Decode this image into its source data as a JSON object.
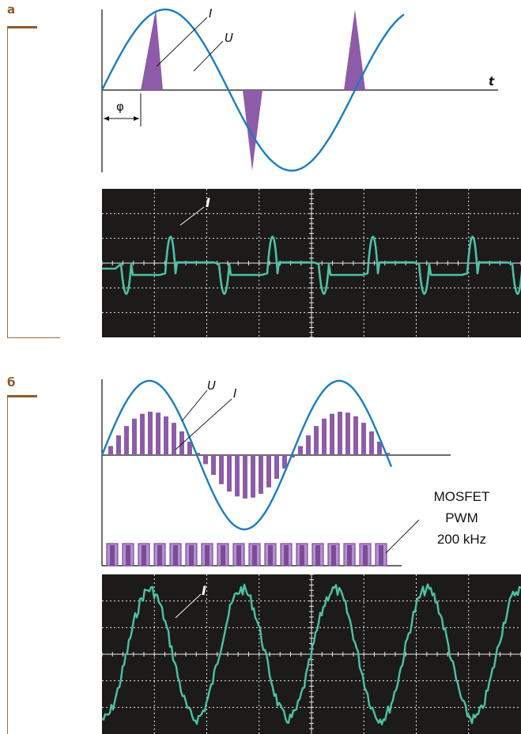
{
  "panel_a": {
    "letter": "а",
    "current_label": "I",
    "voltage_label": "U",
    "time_label": "t",
    "phase_label": "φ",
    "scope_current_label": "I"
  },
  "panel_b": {
    "letter": "б",
    "voltage_label": "U",
    "current_label": "I",
    "pwm_line1": "MOSFET",
    "pwm_line2": "PWM",
    "pwm_line3": "200 kHz",
    "scope_current_label": "I"
  },
  "colors": {
    "voltage": "#1a7cc4",
    "current_fill": "#8d5ba8",
    "scope_bg": "#1c1b1a",
    "scope_grid": "#e8e8e8",
    "scope_trace": "#4ec1a4",
    "bracket": "#8b5a2b"
  }
}
